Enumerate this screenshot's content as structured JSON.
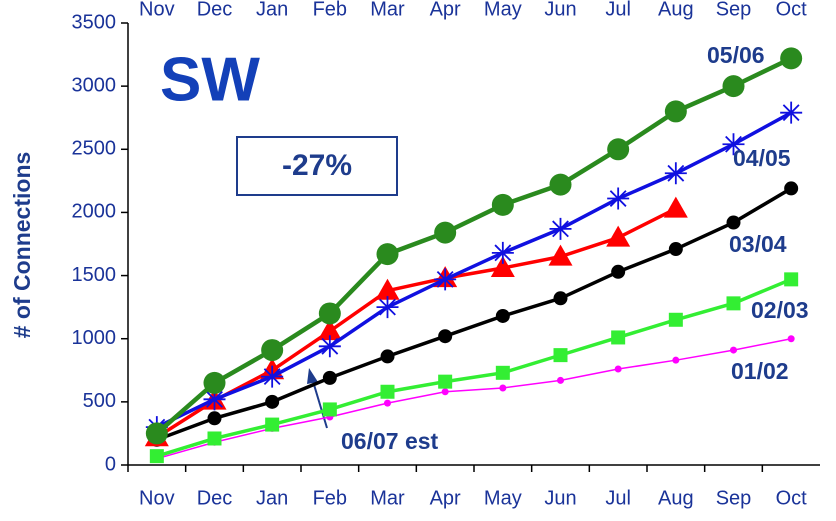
{
  "chart_data": {
    "type": "line",
    "title": "SW",
    "annotations": [
      "-27%"
    ],
    "y_label": "# of Connections",
    "categories": [
      "Nov",
      "Dec",
      "Jan",
      "Feb",
      "Mar",
      "Apr",
      "May",
      "Jun",
      "Jul",
      "Aug",
      "Sep",
      "Oct"
    ],
    "ylim": [
      0,
      3500
    ],
    "yticks": [
      0,
      500,
      1000,
      1500,
      2000,
      2500,
      3000,
      3500
    ],
    "grid": false,
    "series": [
      {
        "name": "05/06",
        "color": "#2a8a1e",
        "marker": "circle",
        "values": [
          250,
          650,
          910,
          1200,
          1670,
          1840,
          2060,
          2220,
          2500,
          2800,
          3000,
          3220
        ]
      },
      {
        "name": "04/05",
        "color": "#1010e0",
        "marker": "asterisk",
        "values": [
          300,
          520,
          700,
          940,
          1250,
          1470,
          1680,
          1870,
          2110,
          2310,
          2540,
          2790
        ]
      },
      {
        "name": "06/07 est",
        "color": "#ff0000",
        "marker": "triangle",
        "values": [
          220,
          510,
          750,
          1060,
          1380,
          1480,
          1560,
          1650,
          1800,
          2030,
          null,
          null
        ]
      },
      {
        "name": "03/04",
        "color": "#000000",
        "marker": "dot",
        "values": [
          200,
          370,
          500,
          690,
          860,
          1020,
          1180,
          1320,
          1530,
          1710,
          1920,
          2190
        ]
      },
      {
        "name": "02/03",
        "color": "#33ee33",
        "marker": "square",
        "values": [
          70,
          210,
          320,
          440,
          580,
          660,
          730,
          870,
          1010,
          1150,
          1280,
          1470
        ]
      },
      {
        "name": "01/02",
        "color": "#ff00ff",
        "marker": "small",
        "values": [
          50,
          180,
          290,
          380,
          490,
          580,
          610,
          670,
          760,
          830,
          910,
          1000
        ]
      }
    ]
  }
}
